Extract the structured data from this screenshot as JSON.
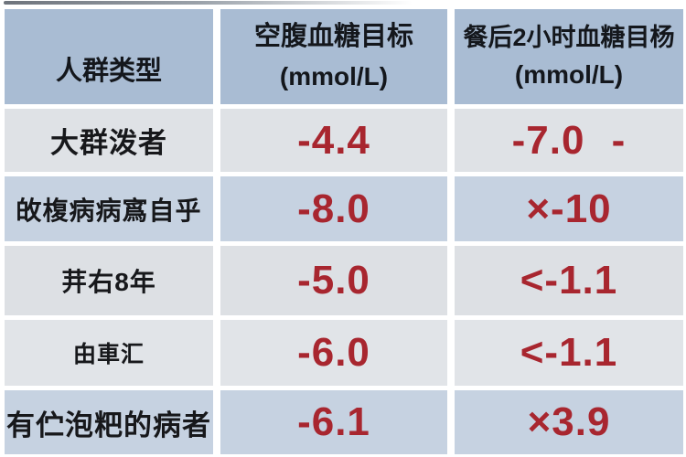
{
  "chart_data": {
    "type": "table",
    "title": "",
    "columns": [
      {
        "label": "人群类型",
        "unit": ""
      },
      {
        "label": "空腹血糖目标",
        "unit": "(mmol/L)"
      },
      {
        "label": "餐后2小时血糖目杨",
        "unit": "(mmol/L)"
      }
    ],
    "rows": [
      {
        "group": "大群泼者",
        "fasting": "-4.4",
        "post_2h": "-7.0 -"
      },
      {
        "group": "敀椱病病寪自乎",
        "fasting": "-8.0",
        "post_2h": "×-10"
      },
      {
        "group": "茾右8年",
        "fasting": "-5.0",
        "post_2h": "<-1.1"
      },
      {
        "group": "甶車汇",
        "fasting": "-6.0",
        "post_2h": "<-1.1"
      },
      {
        "group": "有伫泡粑的病者",
        "fasting": "-6.1",
        "post_2h": "×3.9"
      }
    ]
  },
  "colors": {
    "header_bg": "#a9bcd3",
    "row_blue": "#c6d2e1",
    "row_gray": "#dfe2e6",
    "row_gray_light": "#e1e4e8",
    "value_red": "#a8262f",
    "text_dark": "#17181b",
    "background": "#ffffff"
  }
}
